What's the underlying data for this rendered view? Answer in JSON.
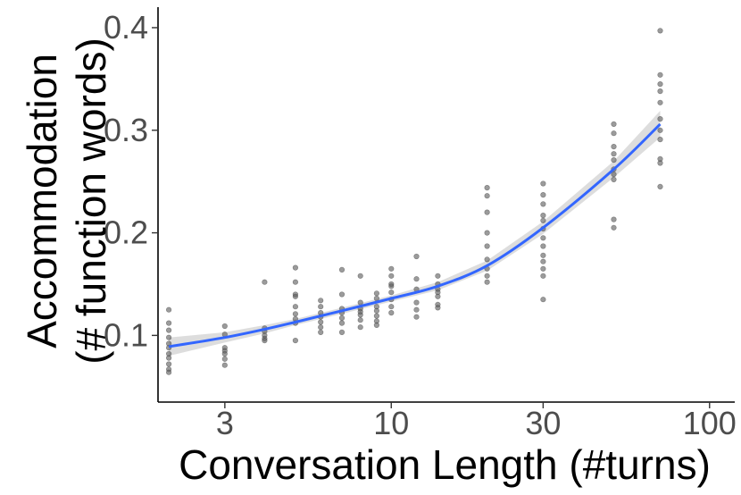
{
  "chart_data": {
    "type": "scatter",
    "title": "",
    "xlabel": "Conversation Length (#turns)",
    "ylabel_line1": "Accommodation",
    "ylabel_line2": "(# function words)",
    "x_scale": "log10",
    "xlim": [
      1.85,
      120
    ],
    "ylim": [
      0.035,
      0.42
    ],
    "x_ticks": [
      3,
      10,
      30,
      100
    ],
    "x_tick_labels": [
      "3",
      "10",
      "30",
      "100"
    ],
    "y_ticks": [
      0.1,
      0.2,
      0.3,
      0.4
    ],
    "y_tick_labels": [
      "0.1",
      "0.2",
      "0.3",
      "0.4"
    ],
    "grid": false,
    "legend": "none",
    "point_color": "#595959",
    "smooth_color": "#3366ff",
    "ribbon_color": "#d9d9d9",
    "points": [
      [
        2,
        0.125
      ],
      [
        2,
        0.112
      ],
      [
        2,
        0.105
      ],
      [
        2,
        0.098
      ],
      [
        2,
        0.092
      ],
      [
        2,
        0.088
      ],
      [
        2,
        0.082
      ],
      [
        2,
        0.078
      ],
      [
        2,
        0.072
      ],
      [
        2,
        0.067
      ],
      [
        2,
        0.064
      ],
      [
        3,
        0.109
      ],
      [
        3,
        0.101
      ],
      [
        3,
        0.088
      ],
      [
        3,
        0.085
      ],
      [
        3,
        0.082
      ],
      [
        3,
        0.077
      ],
      [
        3,
        0.071
      ],
      [
        4,
        0.152
      ],
      [
        4,
        0.107
      ],
      [
        4,
        0.104
      ],
      [
        4,
        0.1
      ],
      [
        4,
        0.097
      ],
      [
        4,
        0.095
      ],
      [
        5,
        0.166
      ],
      [
        5,
        0.152
      ],
      [
        5,
        0.14
      ],
      [
        5,
        0.138
      ],
      [
        5,
        0.128
      ],
      [
        5,
        0.121
      ],
      [
        5,
        0.116
      ],
      [
        5,
        0.112
      ],
      [
        5,
        0.095
      ],
      [
        6,
        0.134
      ],
      [
        6,
        0.128
      ],
      [
        6,
        0.122
      ],
      [
        6,
        0.118
      ],
      [
        6,
        0.113
      ],
      [
        6,
        0.108
      ],
      [
        6,
        0.103
      ],
      [
        7,
        0.164
      ],
      [
        7,
        0.14
      ],
      [
        7,
        0.126
      ],
      [
        7,
        0.122
      ],
      [
        7,
        0.117
      ],
      [
        7,
        0.112
      ],
      [
        7,
        0.103
      ],
      [
        8,
        0.158
      ],
      [
        8,
        0.132
      ],
      [
        8,
        0.126
      ],
      [
        8,
        0.123
      ],
      [
        8,
        0.12
      ],
      [
        8,
        0.115
      ],
      [
        8,
        0.108
      ],
      [
        9,
        0.141
      ],
      [
        9,
        0.136
      ],
      [
        9,
        0.128
      ],
      [
        9,
        0.124
      ],
      [
        9,
        0.119
      ],
      [
        9,
        0.114
      ],
      [
        9,
        0.11
      ],
      [
        10,
        0.165
      ],
      [
        10,
        0.158
      ],
      [
        10,
        0.15
      ],
      [
        10,
        0.148
      ],
      [
        10,
        0.142
      ],
      [
        10,
        0.135
      ],
      [
        10,
        0.128
      ],
      [
        10,
        0.122
      ],
      [
        12,
        0.177
      ],
      [
        12,
        0.155
      ],
      [
        12,
        0.145
      ],
      [
        12,
        0.132
      ],
      [
        12,
        0.125
      ],
      [
        12,
        0.118
      ],
      [
        14,
        0.158
      ],
      [
        14,
        0.15
      ],
      [
        14,
        0.145
      ],
      [
        14,
        0.142
      ],
      [
        14,
        0.138
      ],
      [
        14,
        0.13
      ],
      [
        14,
        0.127
      ],
      [
        20,
        0.244
      ],
      [
        20,
        0.236
      ],
      [
        20,
        0.22
      ],
      [
        20,
        0.2
      ],
      [
        20,
        0.187
      ],
      [
        20,
        0.174
      ],
      [
        20,
        0.165
      ],
      [
        20,
        0.158
      ],
      [
        20,
        0.152
      ],
      [
        30,
        0.248
      ],
      [
        30,
        0.237
      ],
      [
        30,
        0.228
      ],
      [
        30,
        0.217
      ],
      [
        30,
        0.212
      ],
      [
        30,
        0.204
      ],
      [
        30,
        0.195
      ],
      [
        30,
        0.187
      ],
      [
        30,
        0.178
      ],
      [
        30,
        0.172
      ],
      [
        30,
        0.165
      ],
      [
        30,
        0.158
      ],
      [
        30,
        0.135
      ],
      [
        50,
        0.306
      ],
      [
        50,
        0.297
      ],
      [
        50,
        0.284
      ],
      [
        50,
        0.277
      ],
      [
        50,
        0.271
      ],
      [
        50,
        0.262
      ],
      [
        50,
        0.257
      ],
      [
        50,
        0.252
      ],
      [
        50,
        0.213
      ],
      [
        50,
        0.205
      ],
      [
        70,
        0.397
      ],
      [
        70,
        0.354
      ],
      [
        70,
        0.345
      ],
      [
        70,
        0.338
      ],
      [
        70,
        0.327
      ],
      [
        70,
        0.311
      ],
      [
        70,
        0.3
      ],
      [
        70,
        0.291
      ],
      [
        70,
        0.272
      ],
      [
        70,
        0.268
      ],
      [
        70,
        0.245
      ]
    ],
    "smooth": {
      "x": [
        2,
        3,
        4,
        5,
        7,
        10,
        14,
        20,
        30,
        50,
        70
      ],
      "y": [
        0.089,
        0.098,
        0.106,
        0.113,
        0.124,
        0.136,
        0.148,
        0.168,
        0.205,
        0.262,
        0.306
      ],
      "ymin": [
        0.08,
        0.093,
        0.102,
        0.11,
        0.121,
        0.133,
        0.144,
        0.163,
        0.199,
        0.254,
        0.293
      ],
      "ymax": [
        0.098,
        0.103,
        0.11,
        0.116,
        0.127,
        0.139,
        0.152,
        0.173,
        0.211,
        0.27,
        0.319
      ]
    }
  }
}
